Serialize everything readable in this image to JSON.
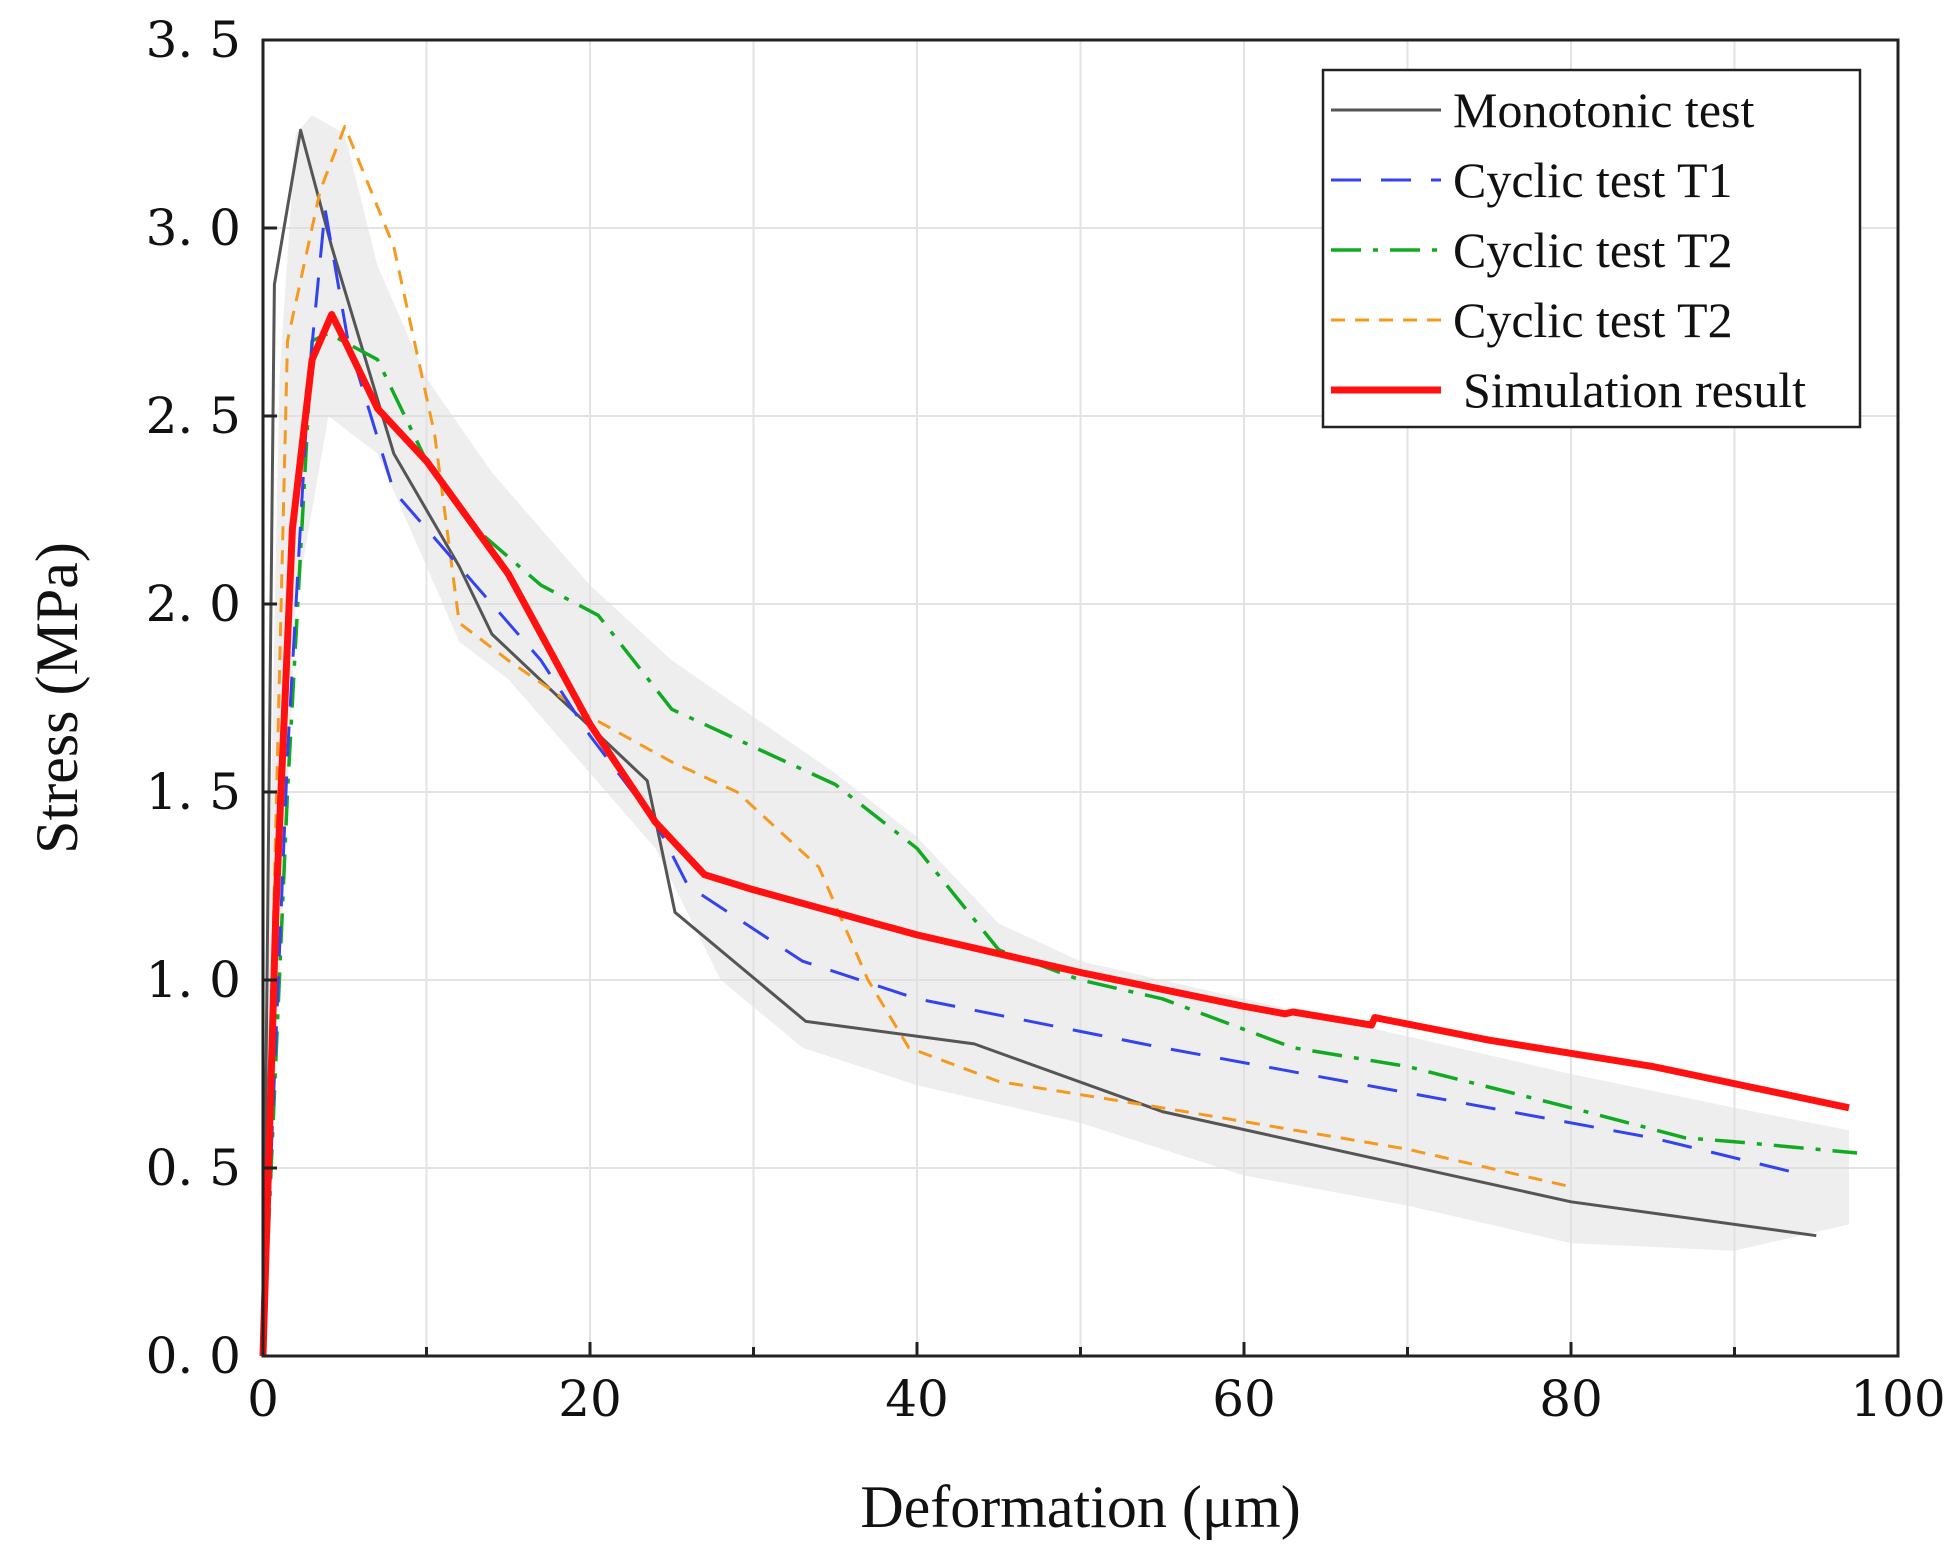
{
  "chart_data": {
    "type": "line",
    "title": "",
    "xlabel": "Deformation (μm)",
    "ylabel": "Stress (MPa)",
    "xlim": [
      0,
      100
    ],
    "ylim": [
      0,
      3.5
    ],
    "grid": true,
    "legend_position": "top-right",
    "x_ticks": [
      "0",
      "20",
      "40",
      "60",
      "80",
      "100"
    ],
    "y_ticks": [
      "0. 0",
      "0. 5",
      "1. 0",
      "1. 5",
      "2. 0",
      "2. 5",
      "3. 0",
      "3. 5"
    ],
    "envelope": {
      "name": "scatter band",
      "color": "#e0e0e0",
      "upper": [
        [
          0,
          0.4
        ],
        [
          1,
          2.6
        ],
        [
          2,
          3.25
        ],
        [
          3,
          3.3
        ],
        [
          5,
          3.25
        ],
        [
          7,
          2.9
        ],
        [
          10,
          2.6
        ],
        [
          14,
          2.35
        ],
        [
          20,
          2.05
        ],
        [
          25,
          1.85
        ],
        [
          30,
          1.7
        ],
        [
          35,
          1.55
        ],
        [
          40,
          1.38
        ],
        [
          45,
          1.15
        ],
        [
          50,
          1.05
        ],
        [
          60,
          0.95
        ],
        [
          70,
          0.85
        ],
        [
          80,
          0.75
        ],
        [
          90,
          0.66
        ],
        [
          97,
          0.6
        ]
      ],
      "lower": [
        [
          97,
          0.35
        ],
        [
          90,
          0.28
        ],
        [
          80,
          0.3
        ],
        [
          70,
          0.4
        ],
        [
          60,
          0.48
        ],
        [
          50,
          0.62
        ],
        [
          40,
          0.72
        ],
        [
          33,
          0.82
        ],
        [
          28,
          1.0
        ],
        [
          24,
          1.35
        ],
        [
          20,
          1.55
        ],
        [
          15,
          1.8
        ],
        [
          12,
          1.9
        ],
        [
          9,
          2.2
        ],
        [
          7,
          2.4
        ],
        [
          4,
          2.5
        ],
        [
          2,
          2.0
        ],
        [
          1,
          1.0
        ],
        [
          0,
          0
        ]
      ]
    },
    "series": [
      {
        "name": "Monotonic test",
        "color": "#555555",
        "dash": "",
        "width": 3,
        "x": [
          0,
          0.7,
          2.3,
          4.2,
          8,
          12,
          14,
          23.5,
          25.2,
          33.2,
          43.5,
          55,
          80,
          95
        ],
        "y": [
          0,
          2.85,
          3.26,
          2.95,
          2.4,
          2.1,
          1.92,
          1.53,
          1.18,
          0.89,
          0.83,
          0.65,
          0.41,
          0.32
        ]
      },
      {
        "name": "Cyclic test T1",
        "color": "#3344ee",
        "dash": "30,20",
        "width": 3,
        "x": [
          0,
          1.5,
          2.8,
          3.8,
          5.2,
          8,
          12,
          17,
          20,
          24,
          26,
          33,
          40,
          55,
          70,
          85,
          93.5
        ],
        "y": [
          0,
          1.6,
          2.6,
          3.05,
          2.7,
          2.3,
          2.1,
          1.85,
          1.65,
          1.42,
          1.25,
          1.05,
          0.95,
          0.82,
          0.7,
          0.58,
          0.49
        ]
      },
      {
        "name": "Cyclic test T2",
        "color": "#11aa22",
        "dash": "30,12,5,12",
        "width": 3.5,
        "x": [
          0,
          1.5,
          3,
          4,
          7,
          10,
          13,
          17,
          20.5,
          25,
          30,
          35,
          40,
          45,
          50,
          55,
          63,
          70,
          80,
          87,
          90,
          97.5
        ],
        "y": [
          0,
          1.5,
          2.7,
          2.72,
          2.65,
          2.38,
          2.2,
          2.05,
          1.97,
          1.72,
          1.62,
          1.52,
          1.35,
          1.08,
          1.0,
          0.95,
          0.82,
          0.77,
          0.66,
          0.58,
          0.57,
          0.54
        ]
      },
      {
        "name": "Cyclic test T2",
        "color": "#f59a20",
        "dash": "14,10",
        "width": 3,
        "x": [
          0,
          1.5,
          3.5,
          5,
          8,
          10.5,
          12,
          15,
          20,
          25,
          29,
          34,
          37,
          39.5,
          45,
          55,
          70,
          80
        ],
        "y": [
          0,
          2.7,
          3.1,
          3.27,
          2.95,
          2.45,
          1.95,
          1.85,
          1.7,
          1.58,
          1.5,
          1.3,
          1.0,
          0.82,
          0.73,
          0.66,
          0.55,
          0.45
        ]
      },
      {
        "name": "Simulation result",
        "color": "#ff1111",
        "dash": "",
        "width": 7,
        "x": [
          0,
          0.8,
          1.8,
          3,
          4.2,
          5,
          7,
          10,
          15,
          20,
          24,
          27,
          30,
          40,
          50,
          60,
          62.5,
          63,
          67.8,
          68,
          75,
          85,
          97
        ],
        "y": [
          0,
          1.2,
          2.2,
          2.65,
          2.77,
          2.7,
          2.52,
          2.38,
          2.08,
          1.68,
          1.42,
          1.28,
          1.24,
          1.12,
          1.02,
          0.93,
          0.91,
          0.915,
          0.88,
          0.9,
          0.84,
          0.77,
          0.66
        ]
      }
    ]
  }
}
